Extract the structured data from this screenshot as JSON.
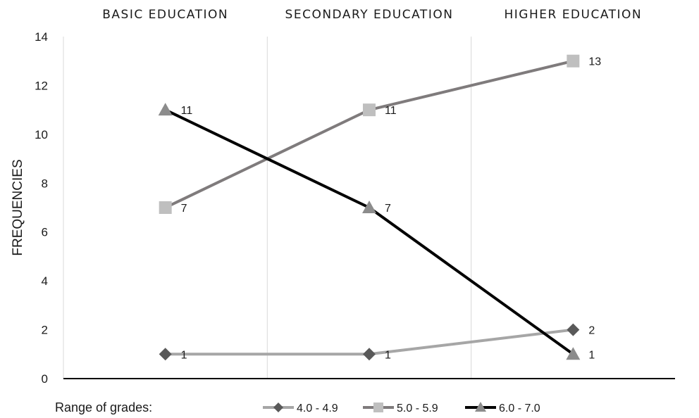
{
  "chart_data": {
    "type": "line",
    "categories": [
      "BASIC EDUCATION",
      "SECONDARY EDUCATION",
      "HIGHER EDUCATION"
    ],
    "ylabel": "FREQUENCIES",
    "ylim": [
      0,
      14
    ],
    "yticks": [
      0,
      2,
      4,
      6,
      8,
      10,
      12,
      14
    ],
    "grid": "vertical category separators",
    "legend": {
      "position": "bottom",
      "title": "Range of grades:"
    },
    "series": [
      {
        "name": "4.0 - 4.9",
        "values": [
          1,
          1,
          2
        ],
        "color": "#a6a6a6",
        "marker_color": "#595959",
        "marker": "diamond"
      },
      {
        "name": "5.0 - 5.9",
        "values": [
          7,
          11,
          13
        ],
        "color": "#7f7b7c",
        "marker_color": "#bfbfbf",
        "marker": "square"
      },
      {
        "name": "6.0 - 7.0",
        "values": [
          11,
          7,
          1
        ],
        "color": "#000000",
        "marker_color": "#8c8c8c",
        "marker": "triangle"
      }
    ]
  }
}
